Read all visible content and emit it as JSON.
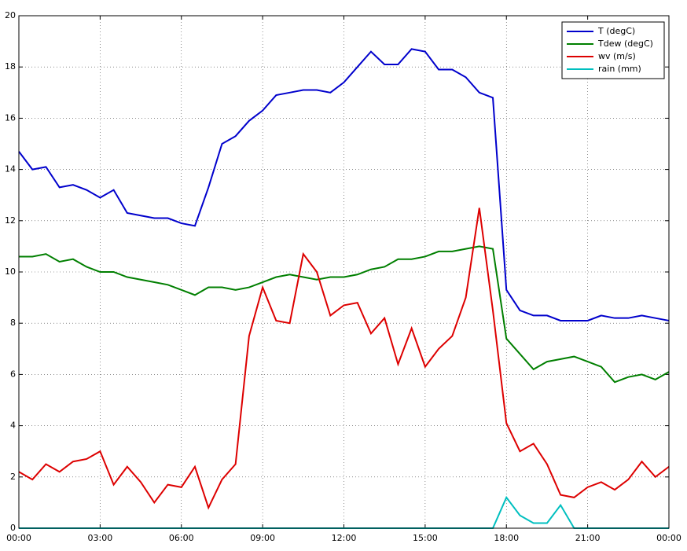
{
  "chart_data": {
    "type": "line",
    "x": [
      0,
      0.5,
      1,
      1.5,
      2,
      2.5,
      3,
      3.5,
      4,
      4.5,
      5,
      5.5,
      6,
      6.5,
      7,
      7.5,
      8,
      8.5,
      9,
      9.5,
      10,
      10.5,
      11,
      11.5,
      12,
      12.5,
      13,
      13.5,
      14,
      14.5,
      15,
      15.5,
      16,
      16.5,
      17,
      17.5,
      18,
      18.5,
      19,
      19.5,
      20,
      20.5,
      21,
      21.5,
      22,
      22.5,
      23,
      23.5,
      24
    ],
    "series": [
      {
        "name": "T (degC)",
        "color": "#0000cc",
        "values": [
          14.7,
          14.0,
          14.1,
          13.3,
          13.4,
          13.2,
          12.9,
          13.2,
          12.3,
          12.2,
          12.1,
          12.1,
          11.9,
          11.8,
          13.3,
          15.0,
          15.3,
          15.9,
          16.3,
          16.9,
          17.0,
          17.1,
          17.1,
          17.0,
          17.4,
          18.0,
          18.6,
          18.1,
          18.1,
          18.7,
          18.6,
          17.9,
          17.9,
          17.6,
          17.0,
          16.8,
          9.3,
          8.5,
          8.3,
          8.3,
          8.1,
          8.1,
          8.1,
          8.3,
          8.2,
          8.2,
          8.3,
          8.2,
          8.1
        ]
      },
      {
        "name": "Tdew (degC)",
        "color": "#007f00",
        "values": [
          10.6,
          10.6,
          10.7,
          10.4,
          10.5,
          10.2,
          10.0,
          10.0,
          9.8,
          9.7,
          9.6,
          9.5,
          9.3,
          9.1,
          9.4,
          9.4,
          9.3,
          9.4,
          9.6,
          9.8,
          9.9,
          9.8,
          9.7,
          9.8,
          9.8,
          9.9,
          10.1,
          10.2,
          10.5,
          10.5,
          10.6,
          10.8,
          10.8,
          10.9,
          11.0,
          10.9,
          7.4,
          6.8,
          6.2,
          6.5,
          6.6,
          6.7,
          6.5,
          6.3,
          5.7,
          5.9,
          6.0,
          5.8,
          6.1
        ]
      },
      {
        "name": "wv (m/s)",
        "color": "#dd0000",
        "values": [
          2.2,
          1.9,
          2.5,
          2.2,
          2.6,
          2.7,
          3.0,
          1.7,
          2.4,
          1.8,
          1.0,
          1.7,
          1.6,
          2.4,
          0.8,
          1.9,
          2.5,
          7.5,
          9.4,
          8.1,
          8.0,
          10.7,
          10.0,
          8.3,
          8.7,
          8.8,
          7.6,
          8.2,
          6.4,
          7.8,
          6.3,
          7.0,
          7.5,
          9.0,
          12.5,
          8.5,
          4.1,
          3.0,
          3.3,
          2.5,
          1.3,
          1.2,
          1.6,
          1.8,
          1.5,
          1.9,
          2.6,
          2.0,
          2.4
        ]
      },
      {
        "name": "rain (mm)",
        "color": "#00bfbf",
        "values": [
          0,
          0,
          0,
          0,
          0,
          0,
          0,
          0,
          0,
          0,
          0,
          0,
          0,
          0,
          0,
          0,
          0,
          0,
          0,
          0,
          0,
          0,
          0,
          0,
          0,
          0,
          0,
          0,
          0,
          0,
          0,
          0,
          0,
          0,
          0,
          0,
          1.2,
          0.5,
          0.2,
          0.2,
          0.9,
          0,
          0,
          0,
          0,
          0,
          0,
          0,
          0
        ]
      }
    ],
    "xlim": [
      0,
      24
    ],
    "xticks": [
      {
        "value": 0,
        "label": "00:00"
      },
      {
        "value": 3,
        "label": "03:00"
      },
      {
        "value": 6,
        "label": "06:00"
      },
      {
        "value": 9,
        "label": "09:00"
      },
      {
        "value": 12,
        "label": "12:00"
      },
      {
        "value": 15,
        "label": "15:00"
      },
      {
        "value": 18,
        "label": "18:00"
      },
      {
        "value": 21,
        "label": "21:00"
      },
      {
        "value": 24,
        "label": "00:00"
      }
    ],
    "ylim": [
      0,
      20
    ],
    "yticks": [
      0,
      2,
      4,
      6,
      8,
      10,
      12,
      14,
      16,
      18,
      20
    ],
    "grid": true,
    "legend": "top-right"
  }
}
